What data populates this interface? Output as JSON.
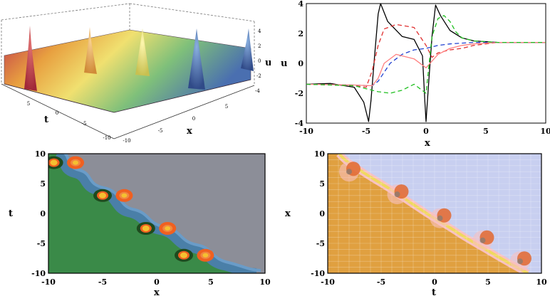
{
  "chart_data": [
    {
      "type": "surface",
      "xlabel": "x",
      "ylabel": "t",
      "zlabel": "u",
      "xlim": [
        -10,
        10
      ],
      "ylim": [
        -10,
        10
      ],
      "zlim": [
        -4,
        4
      ],
      "x_ticks": [
        "-10",
        "-5",
        "0",
        "5"
      ],
      "t_ticks": [
        "5",
        "0",
        "-5",
        "-10"
      ],
      "z_ticks": [
        "4",
        "2",
        "0",
        "-2",
        "-4"
      ],
      "peaks": [
        {
          "x": -9,
          "t": 9,
          "u": 4
        },
        {
          "x": -4.5,
          "t": 5,
          "u": 4
        },
        {
          "x": 0,
          "t": 0,
          "u": 4
        },
        {
          "x": 4.5,
          "t": -5,
          "u": 4
        },
        {
          "x": 9,
          "t": -9,
          "u": 4
        }
      ],
      "colormap": [
        "#c0364a",
        "#e8a040",
        "#f0e070",
        "#7fc07a",
        "#4a6fb0"
      ]
    },
    {
      "type": "line",
      "xlabel": "x",
      "ylabel": "u",
      "xlim": [
        -10,
        10
      ],
      "ylim": [
        -4,
        4
      ],
      "x_ticks": [
        "-10",
        "-5",
        "0",
        "5",
        "10"
      ],
      "y_ticks": [
        "4",
        "2",
        "0",
        "-2",
        "-4"
      ],
      "series": [
        {
          "color": "#000000",
          "dash": "solid",
          "x": [
            -10,
            -8,
            -6,
            -5.2,
            -4.8,
            -4.6,
            -4.3,
            -4.0,
            -3.8,
            -3.2,
            -2,
            -1,
            -0.3,
            -0.1,
            0,
            0.2,
            0.5,
            0.8,
            1.2,
            2,
            3,
            4,
            6,
            8,
            10
          ],
          "y": [
            -1.4,
            -1.35,
            -1.6,
            -2.6,
            -3.9,
            -2.5,
            0.5,
            3.3,
            4.0,
            2.8,
            1.8,
            1.6,
            0.5,
            -2.5,
            -3.9,
            -1.5,
            1.8,
            3.9,
            3.2,
            2.2,
            1.7,
            1.5,
            1.4,
            1.4,
            1.4
          ]
        },
        {
          "color": "#e03030",
          "dash": "dashed",
          "x": [
            -10,
            -6,
            -5,
            -4.5,
            -4,
            -3.5,
            -2.5,
            -1,
            0,
            0.5,
            1,
            2,
            3,
            4,
            6,
            10
          ],
          "y": [
            -1.4,
            -1.5,
            -1.6,
            -0.5,
            1.2,
            2.3,
            2.6,
            2.4,
            1.2,
            0.4,
            0.7,
            0.9,
            1.0,
            1.2,
            1.4,
            1.4
          ]
        },
        {
          "color": "#2040d0",
          "dash": "dashed",
          "x": [
            -10,
            -6,
            -4.5,
            -4,
            -3,
            -2,
            -1,
            0,
            1,
            2,
            3,
            4,
            6,
            10
          ],
          "y": [
            -1.4,
            -1.45,
            -1.5,
            -1.2,
            0,
            0.6,
            0.9,
            1.0,
            1.2,
            1.3,
            1.35,
            1.4,
            1.4,
            1.4
          ]
        },
        {
          "color": "#ff8080",
          "dash": "solid",
          "x": [
            -10,
            -6,
            -4.5,
            -4,
            -3.5,
            -2.5,
            -1,
            0,
            1,
            2,
            3,
            4,
            6,
            10
          ],
          "y": [
            -1.4,
            -1.45,
            -1.5,
            -1.0,
            0,
            0.6,
            0.3,
            -0.3,
            0.6,
            1.0,
            1.2,
            1.3,
            1.4,
            1.4
          ]
        },
        {
          "color": "#20c020",
          "dash": "dashed",
          "x": [
            -10,
            -6,
            -5,
            -4,
            -3,
            -2,
            -1,
            0,
            0.5,
            1,
            1.5,
            2,
            2.5,
            3,
            4,
            6,
            10
          ],
          "y": [
            -1.4,
            -1.5,
            -1.7,
            -1.9,
            -2.0,
            -1.8,
            -1.4,
            -2.0,
            1.8,
            3.0,
            3.2,
            2.8,
            2.1,
            1.7,
            1.5,
            1.4,
            1.4
          ]
        }
      ]
    },
    {
      "type": "contour",
      "xlabel": "x",
      "ylabel": "t",
      "xlim": [
        -10,
        10
      ],
      "ylim": [
        -10,
        10
      ],
      "x_ticks": [
        "-10",
        "-5",
        "0",
        "5",
        "10"
      ],
      "y_ticks": [
        "10",
        "5",
        "0",
        "-5",
        "-10"
      ],
      "colors": {
        "lower": "#3a8a48",
        "upper": "#8c8e98",
        "band": "#4a7fa8",
        "band_edge": "#6a9cc8",
        "dark": "#1e4a1e",
        "orange": "#f06020",
        "yellow": "#f5c030"
      },
      "peaks": [
        {
          "x": -9.5,
          "t": 8.5
        },
        {
          "x": -7.5,
          "t": 8.5
        },
        {
          "x": -5,
          "t": 3
        },
        {
          "x": -3,
          "t": 3
        },
        {
          "x": -1,
          "t": -2.5
        },
        {
          "x": 1,
          "t": -2.5
        },
        {
          "x": 2.5,
          "t": -7
        },
        {
          "x": 4.5,
          "t": -7
        }
      ]
    },
    {
      "type": "density",
      "xlabel": "t",
      "ylabel": "x",
      "xlim": [
        -10,
        10
      ],
      "ylim": [
        -10,
        10
      ],
      "x_ticks": [
        "-10",
        "-5",
        "0",
        "5",
        "10"
      ],
      "y_ticks": [
        "10",
        "5",
        "0",
        "-5",
        "-10"
      ],
      "grid": true,
      "colors": {
        "lower": "#e0a040",
        "upper": "#c8cff0",
        "ridge_pink": "#f8c0c0",
        "ridge_yellow": "#f0d860",
        "blob": "#e06830"
      },
      "blobs": [
        {
          "t": -8,
          "x": 7
        },
        {
          "t": -3.5,
          "x": 3.2
        },
        {
          "t": 0.5,
          "x": -0.8
        },
        {
          "t": 4.5,
          "x": -4.5
        },
        {
          "t": 8,
          "x": -8
        }
      ]
    }
  ]
}
